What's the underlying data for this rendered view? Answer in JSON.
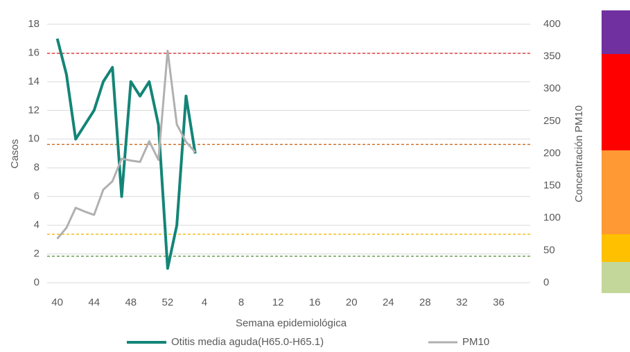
{
  "chart_data": {
    "type": "line",
    "x_label": "Semana epidemiológica",
    "y_label": "Casos",
    "y2_label": "Concentración PM10",
    "categories": [
      "40",
      null,
      null,
      null,
      "44",
      null,
      null,
      null,
      "48",
      null,
      null,
      null,
      "52",
      null,
      null,
      null,
      "4",
      null,
      null,
      null,
      "8",
      null,
      null,
      null,
      "12",
      null,
      null,
      null,
      "16",
      null,
      null,
      null,
      "20",
      null,
      null,
      null,
      "24",
      null,
      null,
      null,
      "28",
      null,
      null,
      null,
      "32",
      null,
      null,
      null,
      "36",
      null,
      null,
      null
    ],
    "series": [
      {
        "name": "Otitis media aguda(H65.0-H65.1)",
        "color": "#138577",
        "axis": "y",
        "values": [
          17,
          14.5,
          10,
          11,
          12,
          14,
          15,
          6,
          14,
          13,
          14,
          11,
          1,
          4,
          13,
          9,
          null,
          null,
          null,
          null,
          null,
          null,
          null,
          null,
          null,
          null,
          null,
          null,
          null,
          null,
          null,
          null,
          null,
          null,
          null,
          null,
          null,
          null,
          null,
          null,
          null,
          null,
          null,
          null,
          null,
          null,
          null,
          null,
          null,
          null,
          null,
          null
        ]
      },
      {
        "name": "PM10",
        "color": "#b0b0b0",
        "axis": "y2",
        "values": [
          68,
          85,
          116,
          110,
          105,
          144,
          157,
          192,
          189,
          187,
          219,
          190,
          359,
          245,
          218,
          202,
          null,
          null,
          null,
          null,
          null,
          null,
          null,
          null,
          null,
          null,
          null,
          null,
          null,
          null,
          null,
          null,
          null,
          null,
          null,
          null,
          null,
          null,
          null,
          null,
          null,
          null,
          null,
          null,
          null,
          null,
          null,
          null,
          null,
          null,
          null,
          null
        ]
      }
    ],
    "reference_lines": [
      {
        "value": 355,
        "color": "#e32222"
      },
      {
        "value": 214,
        "color": "#c8651b"
      },
      {
        "value": 75,
        "color": "#f2b800"
      },
      {
        "value": 41,
        "color": "#4f8a2e"
      }
    ],
    "ylim": [
      0,
      18
    ],
    "yticks": [
      0,
      2,
      4,
      6,
      8,
      10,
      12,
      14,
      16,
      18
    ],
    "y2lim": [
      0,
      400
    ],
    "y2ticks": [
      0,
      50,
      100,
      150,
      200,
      250,
      300,
      350,
      400
    ],
    "grid": true
  }
}
